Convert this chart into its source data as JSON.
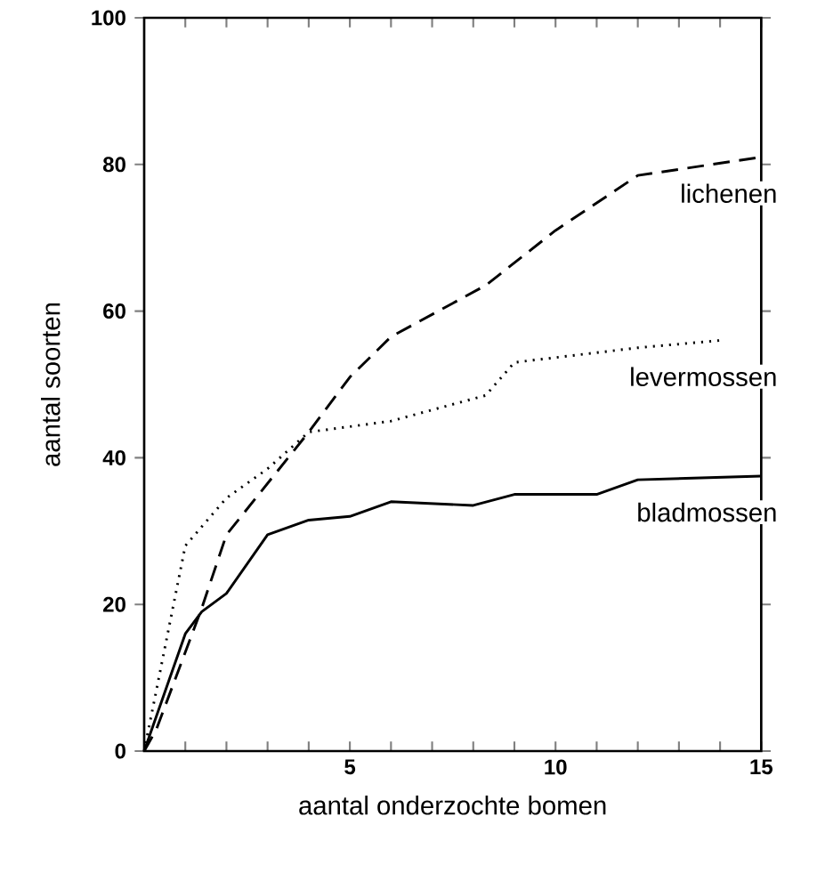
{
  "chart_data": {
    "type": "line",
    "xlabel": "aantal onderzochte bomen",
    "ylabel": "aantal soorten",
    "xlim": [
      0,
      15
    ],
    "ylim": [
      0,
      100
    ],
    "xticks": [
      {
        "value": 1,
        "label": null
      },
      {
        "value": 2,
        "label": null
      },
      {
        "value": 3,
        "label": null
      },
      {
        "value": 4,
        "label": null
      },
      5,
      {
        "value": 6,
        "label": null
      },
      {
        "value": 7,
        "label": null
      },
      {
        "value": 8,
        "label": null
      },
      {
        "value": 9,
        "label": null
      },
      10,
      {
        "value": 11,
        "label": null
      },
      {
        "value": 12,
        "label": null
      },
      {
        "value": 13,
        "label": null
      },
      {
        "value": 14,
        "label": null
      },
      15
    ],
    "yticks": [
      0,
      20,
      40,
      60,
      80,
      100
    ],
    "grid": false,
    "marker": "none",
    "series": [
      {
        "name": "lichenen",
        "color": "#000000",
        "line_style": "dashed",
        "x": [
          0,
          0.3,
          1.4,
          2,
          4,
          5,
          6,
          8.3,
          10,
          12,
          15
        ],
        "values": [
          0,
          3,
          19.5,
          29.5,
          43.5,
          51,
          56.5,
          63.5,
          71,
          78.5,
          81
        ]
      },
      {
        "name": "levermossen",
        "color": "#000000",
        "line_style": "dotted",
        "x": [
          0,
          1,
          2,
          3,
          4,
          6,
          8.3,
          9,
          12,
          14
        ],
        "values": [
          0,
          28,
          34.5,
          38.5,
          43.5,
          45,
          48.5,
          53,
          55,
          56
        ]
      },
      {
        "name": "bladmossen",
        "color": "#000000",
        "line_style": "solid",
        "x": [
          0,
          1,
          1.4,
          2,
          3,
          4,
          5,
          6,
          8,
          9,
          11,
          12,
          15
        ],
        "values": [
          0,
          16,
          19,
          21.5,
          29.5,
          31.5,
          32,
          34,
          33.5,
          35,
          35,
          37,
          37.5
        ]
      }
    ]
  }
}
